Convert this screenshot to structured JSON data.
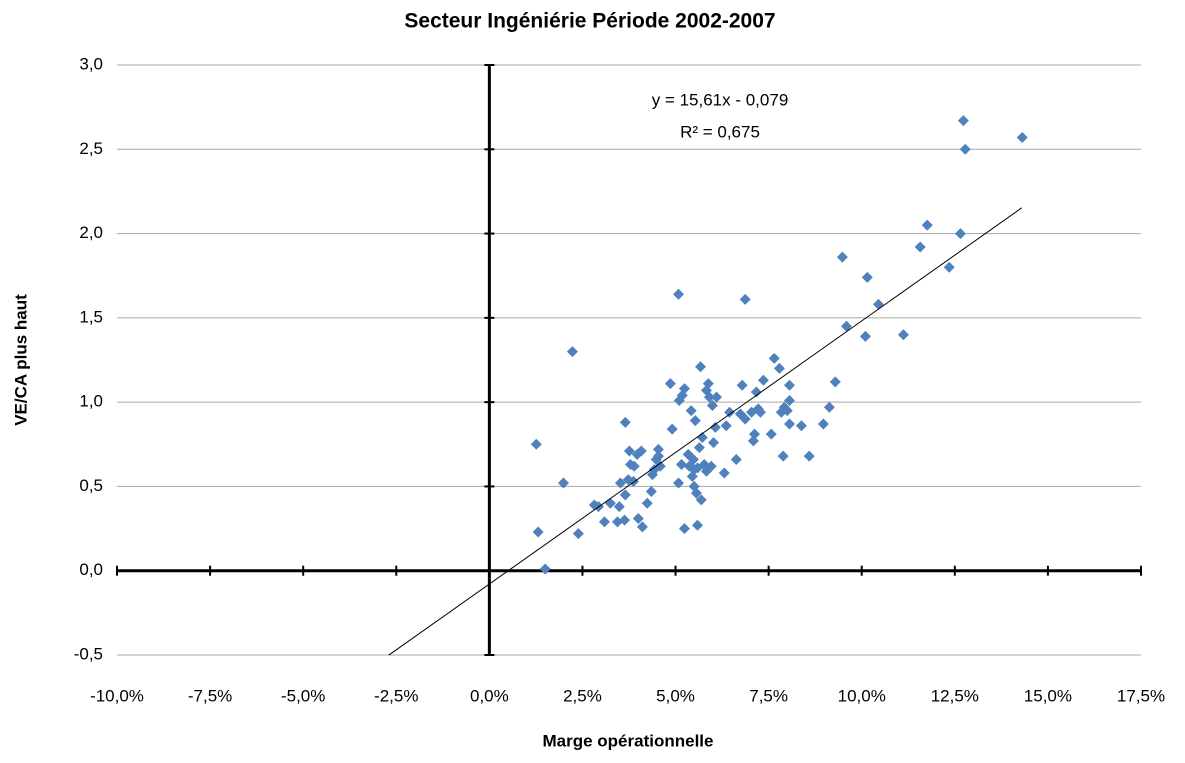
{
  "chart_data": {
    "type": "scatter",
    "title": "Secteur Ingéniérie Période 2002-2007",
    "xlabel": "Marge opérationnelle",
    "ylabel": "VE/CA plus haut",
    "annotations": [
      "y = 15,61x - 0,079",
      "R² = 0,675"
    ],
    "color": "#4f81bd",
    "grid": true,
    "xlim": [
      -10,
      17.5
    ],
    "ylim": [
      -0.5,
      3
    ],
    "xticks": [
      {
        "value": -10,
        "label": "-10,0%"
      },
      {
        "value": -7.5,
        "label": "-7,5%"
      },
      {
        "value": -5,
        "label": "-5,0%"
      },
      {
        "value": -2.5,
        "label": "-2,5%"
      },
      {
        "value": 0,
        "label": "0,0%"
      },
      {
        "value": 2.5,
        "label": "2,5%"
      },
      {
        "value": 5,
        "label": "5,0%"
      },
      {
        "value": 7.5,
        "label": "7,5%"
      },
      {
        "value": 10,
        "label": "10,0%"
      },
      {
        "value": 12.5,
        "label": "12,5%"
      },
      {
        "value": 15,
        "label": "15,0%"
      },
      {
        "value": 17.5,
        "label": "17,5%"
      }
    ],
    "yticks": [
      {
        "value": -0.5,
        "label": "-0,5"
      },
      {
        "value": 0,
        "label": "0,0"
      },
      {
        "value": 0.5,
        "label": "0,5"
      },
      {
        "value": 1,
        "label": "1,0"
      },
      {
        "value": 1.5,
        "label": "1,5"
      },
      {
        "value": 2,
        "label": "2,0"
      },
      {
        "value": 2.5,
        "label": "2,5"
      },
      {
        "value": 3,
        "label": "3,0"
      }
    ],
    "trendline": {
      "x": [
        -2.7,
        14.3
      ],
      "y": [
        -0.5005,
        2.153
      ]
    },
    "x": [
      1.26,
      1.31,
      1.5,
      1.99,
      2.23,
      2.39,
      2.82,
      2.93,
      3.09,
      3.25,
      3.44,
      3.49,
      3.52,
      3.63,
      3.65,
      3.65,
      3.73,
      3.76,
      3.79,
      3.87,
      3.89,
      3.97,
      4.0,
      4.08,
      4.11,
      4.24,
      4.35,
      4.38,
      4.43,
      4.48,
      4.54,
      4.59,
      4.54,
      4.86,
      4.91,
      5.08,
      5.08,
      5.1,
      5.16,
      5.18,
      5.24,
      5.24,
      5.34,
      5.37,
      5.42,
      5.45,
      5.48,
      5.5,
      5.5,
      5.53,
      5.56,
      5.59,
      5.59,
      5.64,
      5.67,
      5.69,
      5.72,
      5.77,
      5.8,
      5.83,
      5.83,
      5.88,
      5.91,
      5.96,
      5.99,
      6.02,
      6.1,
      6.07,
      6.31,
      6.36,
      6.45,
      6.63,
      6.74,
      6.79,
      6.87,
      6.87,
      7.04,
      7.09,
      7.12,
      7.17,
      7.22,
      7.28,
      7.36,
      7.57,
      7.65,
      7.79,
      7.84,
      7.89,
      7.92,
      8.0,
      8.06,
      8.06,
      8.06,
      8.38,
      8.59,
      8.97,
      9.13,
      9.29,
      9.48,
      9.59,
      10.1,
      10.15,
      10.45,
      11.12,
      11.57,
      11.76,
      12.35,
      12.65,
      12.73,
      12.78,
      14.31
    ],
    "y": [
      0.75,
      0.23,
      0.01,
      0.52,
      1.3,
      0.22,
      0.39,
      0.38,
      0.29,
      0.4,
      0.29,
      0.38,
      0.52,
      0.3,
      0.88,
      0.45,
      0.54,
      0.71,
      0.63,
      0.53,
      0.62,
      0.69,
      0.31,
      0.71,
      0.26,
      0.4,
      0.47,
      0.57,
      0.6,
      0.66,
      0.72,
      0.62,
      0.68,
      1.11,
      0.84,
      1.64,
      0.52,
      1.01,
      0.63,
      1.04,
      1.08,
      0.25,
      0.69,
      0.62,
      0.95,
      0.56,
      0.66,
      0.5,
      0.6,
      0.89,
      0.46,
      0.27,
      0.61,
      0.73,
      1.21,
      0.42,
      0.79,
      0.63,
      0.62,
      1.07,
      0.59,
      1.11,
      1.03,
      0.62,
      0.98,
      0.76,
      1.03,
      0.85,
      0.58,
      0.86,
      0.94,
      0.66,
      0.93,
      1.1,
      0.9,
      1.61,
      0.94,
      0.77,
      0.81,
      1.06,
      0.96,
      0.94,
      1.13,
      0.81,
      1.26,
      1.2,
      0.94,
      0.68,
      0.97,
      0.95,
      1.1,
      1.01,
      0.87,
      0.86,
      0.68,
      0.87,
      0.97,
      1.12,
      1.86,
      1.45,
      1.39,
      1.74,
      1.58,
      1.4,
      1.92,
      2.05,
      1.8,
      2.0,
      2.67,
      2.5,
      2.57
    ]
  }
}
